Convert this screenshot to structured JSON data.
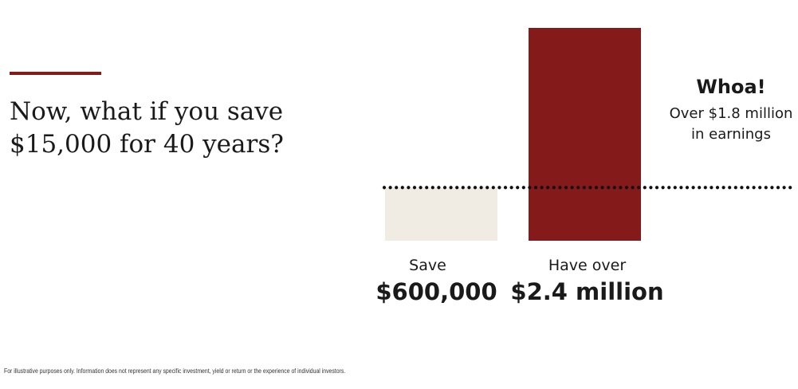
{
  "colors": {
    "accent": "#851a1a",
    "save_bar": "#f0ebe3",
    "text": "#1a1a1a",
    "dots": "#111111"
  },
  "headline": {
    "line1": "Now, what if you save",
    "line2": "$15,000 for 40 years?"
  },
  "chart_data": {
    "type": "bar",
    "categories": [
      "Save",
      "Have over"
    ],
    "values": [
      600000,
      2400000
    ],
    "value_labels": [
      "$600,000",
      "$2.4 million"
    ],
    "reference_line": {
      "value": 600000,
      "style": "dotted"
    },
    "annotation": {
      "title": "Whoa!",
      "line1": "Over $1.8 million",
      "line2": "in earnings"
    },
    "ylim": [
      0,
      2400000
    ],
    "grid": false
  },
  "footnote": "For illustrative purposes only. Information does not represent any specific investment, yield or return or the experience of individual investors."
}
